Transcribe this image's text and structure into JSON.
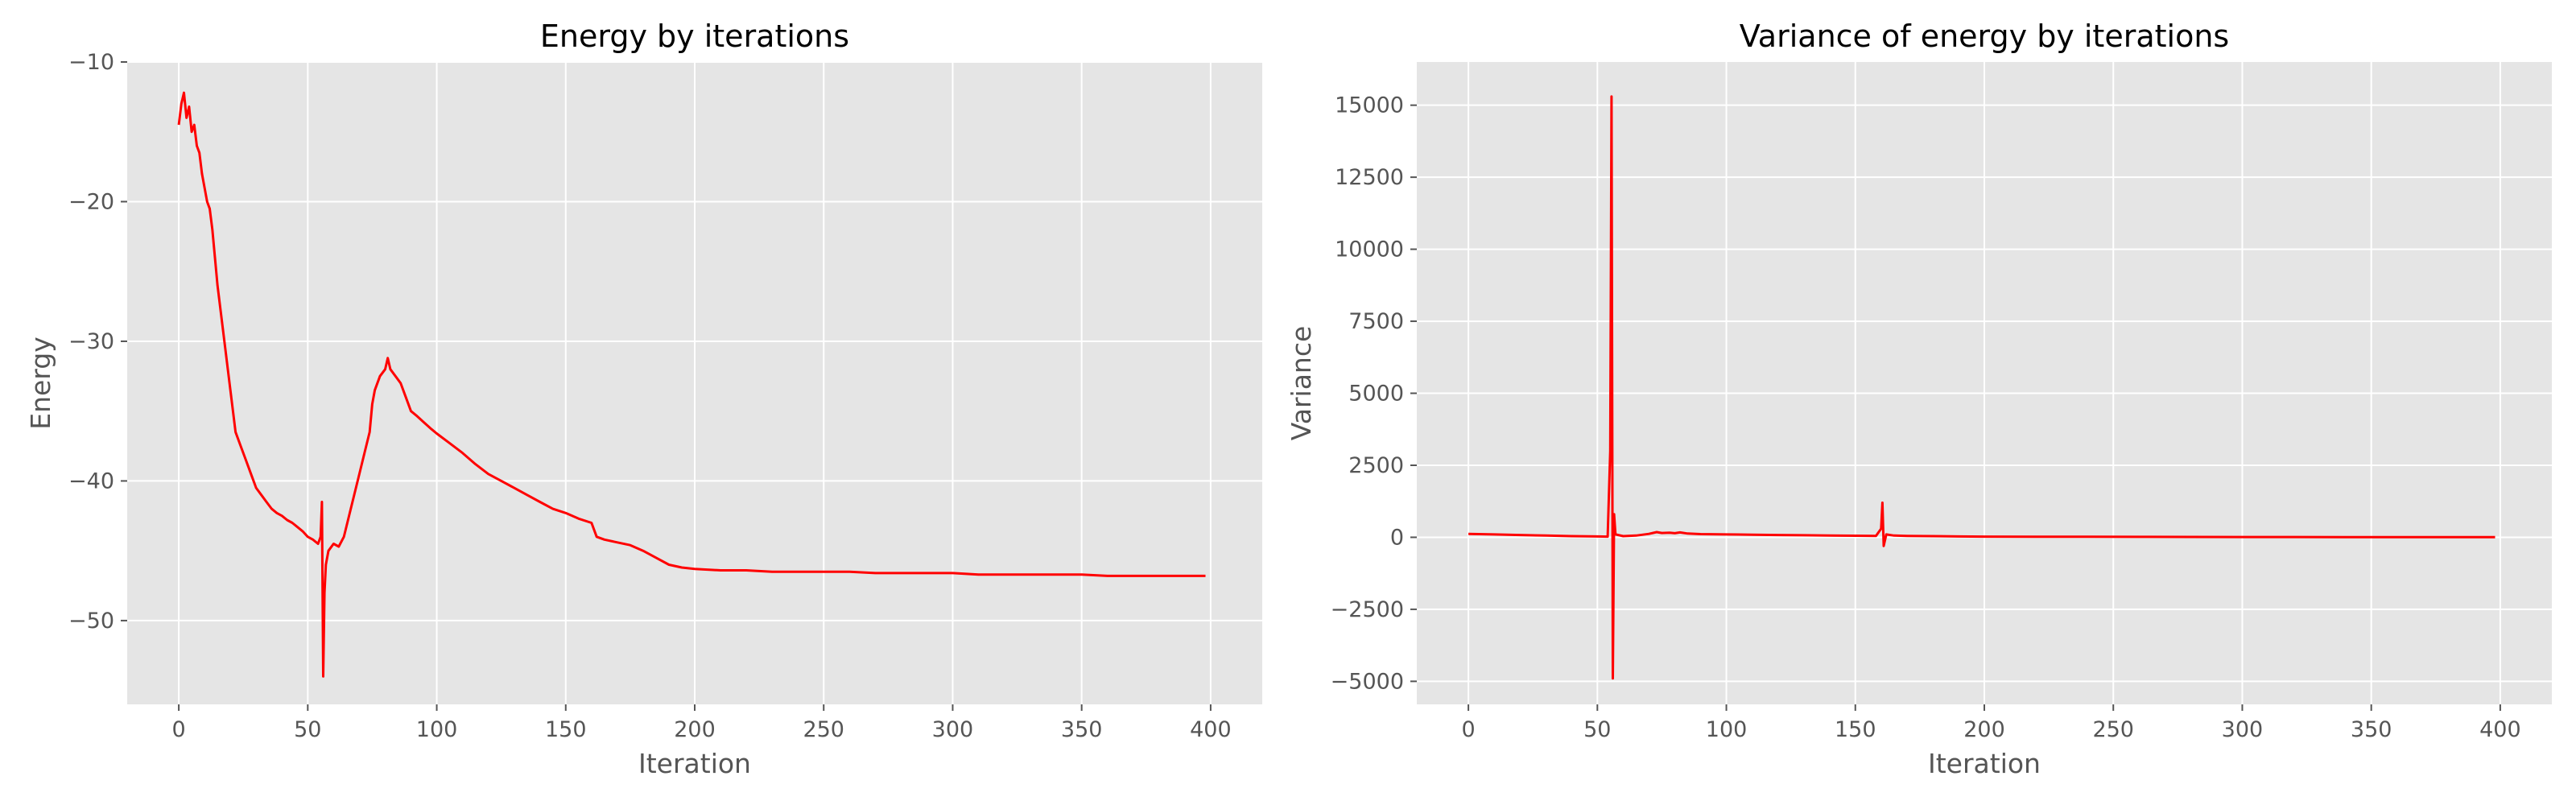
{
  "chart_data": [
    {
      "type": "line",
      "title": "Energy by iterations",
      "xlabel": "Iteration",
      "ylabel": "Energy",
      "xlim": [
        -20,
        420
      ],
      "ylim": [
        -56,
        -10
      ],
      "xticks": [
        0,
        50,
        100,
        150,
        200,
        250,
        300,
        350,
        400
      ],
      "yticks": [
        -50,
        -40,
        -30,
        -20,
        -10
      ],
      "grid": true,
      "color": "#ff0000",
      "series": [
        {
          "points": [
            [
              0,
              -14.5
            ],
            [
              1,
              -13.0
            ],
            [
              2,
              -12.2
            ],
            [
              3,
              -14.0
            ],
            [
              4,
              -13.2
            ],
            [
              5,
              -15.0
            ],
            [
              6,
              -14.5
            ],
            [
              7,
              -16.0
            ],
            [
              8,
              -16.5
            ],
            [
              9,
              -18.0
            ],
            [
              10,
              -19.0
            ],
            [
              11,
              -20.0
            ],
            [
              12,
              -20.5
            ],
            [
              13,
              -22.0
            ],
            [
              14,
              -24.0
            ],
            [
              15,
              -26.0
            ],
            [
              16,
              -27.5
            ],
            [
              17,
              -29.0
            ],
            [
              18,
              -30.5
            ],
            [
              19,
              -32.0
            ],
            [
              20,
              -33.5
            ],
            [
              21,
              -35.0
            ],
            [
              22,
              -36.5
            ],
            [
              24,
              -37.5
            ],
            [
              26,
              -38.5
            ],
            [
              28,
              -39.5
            ],
            [
              30,
              -40.5
            ],
            [
              32,
              -41.0
            ],
            [
              34,
              -41.5
            ],
            [
              36,
              -42.0
            ],
            [
              38,
              -42.3
            ],
            [
              40,
              -42.5
            ],
            [
              42,
              -42.8
            ],
            [
              44,
              -43.0
            ],
            [
              46,
              -43.3
            ],
            [
              48,
              -43.6
            ],
            [
              50,
              -44.0
            ],
            [
              52,
              -44.2
            ],
            [
              54,
              -44.5
            ],
            [
              55,
              -44.0
            ],
            [
              55.5,
              -41.5
            ],
            [
              56,
              -54.0
            ],
            [
              56.5,
              -48.0
            ],
            [
              57,
              -46.0
            ],
            [
              58,
              -45.0
            ],
            [
              60,
              -44.5
            ],
            [
              62,
              -44.7
            ],
            [
              64,
              -44.0
            ],
            [
              66,
              -42.5
            ],
            [
              68,
              -41.0
            ],
            [
              70,
              -39.5
            ],
            [
              72,
              -38.0
            ],
            [
              74,
              -36.5
            ],
            [
              75,
              -34.5
            ],
            [
              76,
              -33.5
            ],
            [
              78,
              -32.5
            ],
            [
              80,
              -32.0
            ],
            [
              81,
              -31.2
            ],
            [
              82,
              -32.0
            ],
            [
              84,
              -32.5
            ],
            [
              86,
              -33.0
            ],
            [
              88,
              -34.0
            ],
            [
              90,
              -35.0
            ],
            [
              92,
              -35.3
            ],
            [
              95,
              -35.8
            ],
            [
              98,
              -36.3
            ],
            [
              100,
              -36.6
            ],
            [
              105,
              -37.3
            ],
            [
              110,
              -38.0
            ],
            [
              115,
              -38.8
            ],
            [
              120,
              -39.5
            ],
            [
              125,
              -40.0
            ],
            [
              130,
              -40.5
            ],
            [
              135,
              -41.0
            ],
            [
              140,
              -41.5
            ],
            [
              145,
              -42.0
            ],
            [
              150,
              -42.3
            ],
            [
              155,
              -42.7
            ],
            [
              160,
              -43.0
            ],
            [
              162,
              -44.0
            ],
            [
              165,
              -44.2
            ],
            [
              170,
              -44.4
            ],
            [
              175,
              -44.6
            ],
            [
              180,
              -45.0
            ],
            [
              185,
              -45.5
            ],
            [
              190,
              -46.0
            ],
            [
              195,
              -46.2
            ],
            [
              200,
              -46.3
            ],
            [
              210,
              -46.4
            ],
            [
              220,
              -46.4
            ],
            [
              230,
              -46.5
            ],
            [
              240,
              -46.5
            ],
            [
              250,
              -46.5
            ],
            [
              260,
              -46.5
            ],
            [
              270,
              -46.6
            ],
            [
              280,
              -46.6
            ],
            [
              290,
              -46.6
            ],
            [
              300,
              -46.6
            ],
            [
              310,
              -46.7
            ],
            [
              320,
              -46.7
            ],
            [
              330,
              -46.7
            ],
            [
              340,
              -46.7
            ],
            [
              350,
              -46.7
            ],
            [
              360,
              -46.8
            ],
            [
              370,
              -46.8
            ],
            [
              380,
              -46.8
            ],
            [
              390,
              -46.8
            ],
            [
              398,
              -46.8
            ]
          ]
        }
      ]
    },
    {
      "type": "line",
      "title": "Variance of energy by iterations",
      "xlabel": "Iteration",
      "ylabel": "Variance",
      "xlim": [
        -20,
        420
      ],
      "ylim": [
        -5800,
        16500
      ],
      "xticks": [
        0,
        50,
        100,
        150,
        200,
        250,
        300,
        350,
        400
      ],
      "yticks": [
        -5000,
        -2500,
        0,
        2500,
        5000,
        7500,
        10000,
        12500,
        15000
      ],
      "grid": true,
      "color": "#ff0000",
      "series": [
        {
          "points": [
            [
              0,
              120
            ],
            [
              10,
              100
            ],
            [
              20,
              80
            ],
            [
              30,
              60
            ],
            [
              40,
              40
            ],
            [
              50,
              30
            ],
            [
              54,
              25
            ],
            [
              55,
              3000
            ],
            [
              55.5,
              15300
            ],
            [
              56,
              -4900
            ],
            [
              56.5,
              800
            ],
            [
              57,
              100
            ],
            [
              60,
              40
            ],
            [
              65,
              60
            ],
            [
              70,
              120
            ],
            [
              73,
              180
            ],
            [
              75,
              150
            ],
            [
              78,
              160
            ],
            [
              80,
              140
            ],
            [
              82,
              170
            ],
            [
              85,
              130
            ],
            [
              90,
              110
            ],
            [
              100,
              100
            ],
            [
              110,
              90
            ],
            [
              120,
              80
            ],
            [
              130,
              70
            ],
            [
              140,
              60
            ],
            [
              150,
              55
            ],
            [
              158,
              50
            ],
            [
              160,
              300
            ],
            [
              160.5,
              1200
            ],
            [
              161,
              -300
            ],
            [
              162,
              100
            ],
            [
              165,
              60
            ],
            [
              170,
              50
            ],
            [
              180,
              40
            ],
            [
              190,
              30
            ],
            [
              200,
              25
            ],
            [
              220,
              20
            ],
            [
              240,
              18
            ],
            [
              260,
              15
            ],
            [
              280,
              12
            ],
            [
              300,
              10
            ],
            [
              320,
              10
            ],
            [
              340,
              8
            ],
            [
              360,
              8
            ],
            [
              380,
              8
            ],
            [
              398,
              8
            ]
          ]
        }
      ]
    }
  ]
}
